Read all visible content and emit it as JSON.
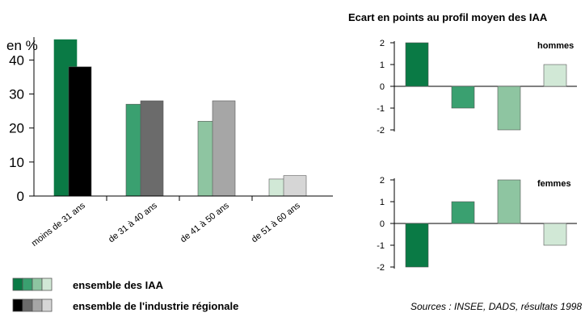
{
  "chart_data": [
    {
      "type": "bar",
      "ylabel": "en %",
      "ylim": [
        0,
        45
      ],
      "yticks": [
        0,
        10,
        20,
        30,
        40
      ],
      "categories": [
        "moins de 31 ans",
        "de 31 à 40 ans",
        "de 41 à 50 ans",
        "de 51 à 60 ans"
      ],
      "series": [
        {
          "name": "ensemble des IAA",
          "values": [
            46,
            27,
            22,
            5
          ]
        },
        {
          "name": "ensemble de l'industrie régionale",
          "values": [
            38,
            28,
            28,
            6
          ]
        }
      ],
      "colors": {
        "ensemble des IAA": [
          "#0a7a45",
          "#3aa070",
          "#8ec5a1",
          "#d1e8d6"
        ],
        "ensemble de l'industrie régionale": [
          "#000000",
          "#6b6b6b",
          "#a6a6a6",
          "#d6d6d6"
        ]
      },
      "legend": {
        "position": "bottom-left",
        "entries": [
          "ensemble des IAA",
          "ensemble de l'industrie régionale"
        ]
      }
    },
    {
      "type": "bar",
      "title": "Ecart en points au profil moyen des IAA",
      "label": "hommes",
      "ylim": [
        -2,
        2
      ],
      "yticks": [
        2,
        1,
        0,
        -1,
        -2
      ],
      "categories": [
        "moins de 31 ans",
        "de 31 à 40 ans",
        "de 41 à 50 ans",
        "de 51 à 60 ans"
      ],
      "values": [
        2,
        -1,
        -2,
        1
      ]
    },
    {
      "type": "bar",
      "label": "femmes",
      "ylim": [
        -2,
        2
      ],
      "yticks": [
        2,
        1,
        0,
        -1,
        -2
      ],
      "categories": [
        "moins de 31 ans",
        "de 31 à 40 ans",
        "de 41 à 50 ans",
        "de 51 à 60 ans"
      ],
      "values": [
        -2,
        1,
        2,
        -1
      ]
    }
  ],
  "source": "Sources : INSEE, DADS, résultats 1998"
}
